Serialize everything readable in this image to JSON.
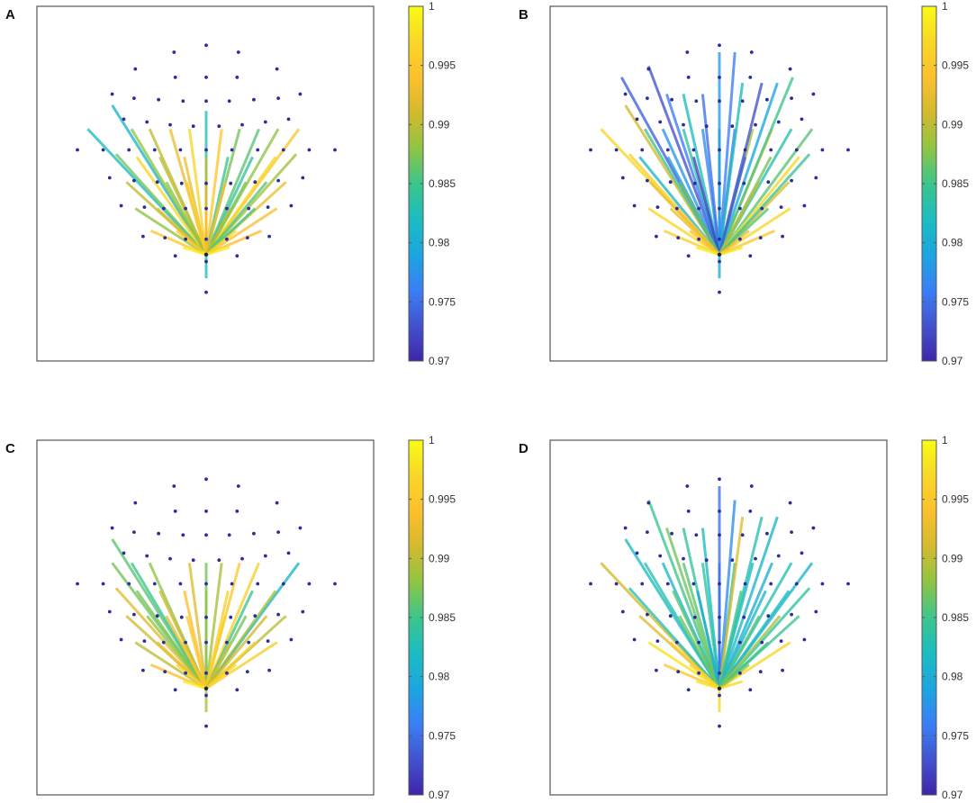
{
  "figure": {
    "colorbar": {
      "min": 0.97,
      "max": 1,
      "ticks": [
        "1",
        "0.995",
        "0.99",
        "0.985",
        "0.98",
        "0.975",
        "0.97"
      ],
      "colormap": [
        "#3e26a8",
        "#4352ce",
        "#3a7ff5",
        "#1ba6e0",
        "#1cbcc0",
        "#3cc58c",
        "#8fc542",
        "#d2ba2f",
        "#fcc02d",
        "#f8d727",
        "#f9fb15"
      ]
    },
    "electrode_color": "#2b2d9a"
  },
  "chart_data": [
    {
      "type": "network",
      "panel": "A",
      "hub": [
        0,
        -0.45
      ],
      "connections": [
        {
          "to": [
            -0.92,
            0.45
          ],
          "value": 0.982
        },
        {
          "to": [
            -0.73,
            0.62
          ],
          "value": 0.981
        },
        {
          "to": [
            -0.58,
            0.45
          ],
          "value": 0.988
        },
        {
          "to": [
            -0.44,
            0.45
          ],
          "value": 0.99
        },
        {
          "to": [
            -0.28,
            0.45
          ],
          "value": 0.993
        },
        {
          "to": [
            -0.13,
            0.45
          ],
          "value": 0.997
        },
        {
          "to": [
            0,
            0.58
          ],
          "value": 0.983
        },
        {
          "to": [
            0.12,
            0.45
          ],
          "value": 0.995
        },
        {
          "to": [
            0.26,
            0.45
          ],
          "value": 0.987
        },
        {
          "to": [
            0.41,
            0.45
          ],
          "value": 0.986
        },
        {
          "to": [
            0.56,
            0.45
          ],
          "value": 0.988
        },
        {
          "to": [
            0.72,
            0.45
          ],
          "value": 0.995
        },
        {
          "to": [
            -0.7,
            0.27
          ],
          "value": 0.987
        },
        {
          "to": [
            -0.54,
            0.25
          ],
          "value": 0.997
        },
        {
          "to": [
            -0.36,
            0.25
          ],
          "value": 0.99
        },
        {
          "to": [
            -0.17,
            0.25
          ],
          "value": 0.993
        },
        {
          "to": [
            0,
            0.25
          ],
          "value": 0.99
        },
        {
          "to": [
            0.17,
            0.25
          ],
          "value": 0.985
        },
        {
          "to": [
            0.36,
            0.25
          ],
          "value": 0.984
        },
        {
          "to": [
            0.54,
            0.25
          ],
          "value": 0.997
        },
        {
          "to": [
            0.7,
            0.27
          ],
          "value": 0.989
        },
        {
          "to": [
            -0.62,
            0.07
          ],
          "value": 0.99
        },
        {
          "to": [
            -0.31,
            0.07
          ],
          "value": 0.988
        },
        {
          "to": [
            -0.15,
            0.07
          ],
          "value": 0.996
        },
        {
          "to": [
            0,
            0.07
          ],
          "value": 0.992
        },
        {
          "to": [
            0.15,
            0.07
          ],
          "value": 0.994
        },
        {
          "to": [
            0.31,
            0.07
          ],
          "value": 0.987
        },
        {
          "to": [
            0.47,
            0.07
          ],
          "value": 0.986
        },
        {
          "to": [
            0.62,
            0.07
          ],
          "value": 0.993
        },
        {
          "to": [
            -0.55,
            -0.12
          ],
          "value": 0.988
        },
        {
          "to": [
            -0.38,
            -0.12
          ],
          "value": 0.992
        },
        {
          "to": [
            0,
            -0.12
          ],
          "value": 0.994
        },
        {
          "to": [
            0.19,
            -0.12
          ],
          "value": 0.99
        },
        {
          "to": [
            0.38,
            -0.12
          ],
          "value": 0.985
        },
        {
          "to": [
            0.55,
            -0.12
          ],
          "value": 0.994
        },
        {
          "to": [
            -0.43,
            -0.28
          ],
          "value": 0.995
        },
        {
          "to": [
            -0.23,
            -0.28
          ],
          "value": 0.996
        },
        {
          "to": [
            0.23,
            -0.28
          ],
          "value": 0.997
        },
        {
          "to": [
            0.43,
            -0.28
          ],
          "value": 0.994
        },
        {
          "to": [
            -0.18,
            -0.4
          ],
          "value": 0.999
        },
        {
          "to": [
            0.18,
            -0.4
          ],
          "value": 0.999
        },
        {
          "to": [
            0,
            -0.62
          ],
          "value": 0.982
        }
      ]
    },
    {
      "type": "network",
      "panel": "B",
      "hub": [
        0,
        -0.45
      ],
      "connections": [
        {
          "to": [
            -0.92,
            0.45
          ],
          "value": 0.997
        },
        {
          "to": [
            -0.73,
            0.62
          ],
          "value": 0.991
        },
        {
          "to": [
            -0.58,
            0.45
          ],
          "value": 0.985
        },
        {
          "to": [
            -0.44,
            0.45
          ],
          "value": 0.978
        },
        {
          "to": [
            -0.28,
            0.45
          ],
          "value": 0.984
        },
        {
          "to": [
            -0.13,
            0.45
          ],
          "value": 0.977
        },
        {
          "to": [
            0,
            0.45
          ],
          "value": 0.98
        },
        {
          "to": [
            0.12,
            0.45
          ],
          "value": 0.976
        },
        {
          "to": [
            0.26,
            0.45
          ],
          "value": 0.989
        },
        {
          "to": [
            0.41,
            0.45
          ],
          "value": 0.994
        },
        {
          "to": [
            0.56,
            0.45
          ],
          "value": 0.983
        },
        {
          "to": [
            0.72,
            0.45
          ],
          "value": 0.986
        },
        {
          "to": [
            -0.76,
            0.82
          ],
          "value": 0.974
        },
        {
          "to": [
            -0.55,
            0.9
          ],
          "value": 0.973
        },
        {
          "to": [
            -0.41,
            0.7
          ],
          "value": 0.976
        },
        {
          "to": [
            -0.28,
            0.7
          ],
          "value": 0.982
        },
        {
          "to": [
            -0.13,
            0.7
          ],
          "value": 0.975
        },
        {
          "to": [
            0,
            1.0
          ],
          "value": 0.978
        },
        {
          "to": [
            0.12,
            1.0
          ],
          "value": 0.976
        },
        {
          "to": [
            0.18,
            0.78
          ],
          "value": 0.982
        },
        {
          "to": [
            0.33,
            0.78
          ],
          "value": 0.973
        },
        {
          "to": [
            0.45,
            0.78
          ],
          "value": 0.979
        },
        {
          "to": [
            0.57,
            0.82
          ],
          "value": 0.985
        },
        {
          "to": [
            -0.62,
            0.25
          ],
          "value": 0.981
        },
        {
          "to": [
            -0.4,
            0.25
          ],
          "value": 0.978
        },
        {
          "to": [
            -0.2,
            0.25
          ],
          "value": 0.972
        },
        {
          "to": [
            0.2,
            0.25
          ],
          "value": 0.974
        },
        {
          "to": [
            0.4,
            0.25
          ],
          "value": 0.987
        },
        {
          "to": [
            0.62,
            0.25
          ],
          "value": 0.997
        },
        {
          "to": [
            -0.7,
            0.27
          ],
          "value": 0.996
        },
        {
          "to": [
            -0.54,
            0.07
          ],
          "value": 0.993
        },
        {
          "to": [
            -0.31,
            0.07
          ],
          "value": 0.987
        },
        {
          "to": [
            0.31,
            0.07
          ],
          "value": 0.99
        },
        {
          "to": [
            0.54,
            0.07
          ],
          "value": 0.992
        },
        {
          "to": [
            0.7,
            0.27
          ],
          "value": 0.985
        },
        {
          "to": [
            -0.55,
            -0.12
          ],
          "value": 0.997
        },
        {
          "to": [
            -0.38,
            -0.12
          ],
          "value": 0.993
        },
        {
          "to": [
            0.38,
            -0.12
          ],
          "value": 0.986
        },
        {
          "to": [
            0.55,
            -0.12
          ],
          "value": 0.997
        },
        {
          "to": [
            -0.43,
            -0.28
          ],
          "value": 0.996
        },
        {
          "to": [
            -0.23,
            -0.28
          ],
          "value": 0.994
        },
        {
          "to": [
            0.23,
            -0.28
          ],
          "value": 0.993
        },
        {
          "to": [
            0.43,
            -0.28
          ],
          "value": 0.995
        },
        {
          "to": [
            -0.18,
            -0.4
          ],
          "value": 0.999
        },
        {
          "to": [
            0.18,
            -0.4
          ],
          "value": 0.998
        },
        {
          "to": [
            0,
            -0.62
          ],
          "value": 0.98
        }
      ]
    },
    {
      "type": "network",
      "panel": "C",
      "hub": [
        0,
        -0.45
      ],
      "connections": [
        {
          "to": [
            -0.73,
            0.62
          ],
          "value": 0.986
        },
        {
          "to": [
            -0.73,
            0.45
          ],
          "value": 0.987
        },
        {
          "to": [
            -0.58,
            0.45
          ],
          "value": 0.985
        },
        {
          "to": [
            -0.44,
            0.45
          ],
          "value": 0.988
        },
        {
          "to": [
            -0.13,
            0.45
          ],
          "value": 0.992
        },
        {
          "to": [
            0,
            0.45
          ],
          "value": 0.987
        },
        {
          "to": [
            0.12,
            0.45
          ],
          "value": 0.989
        },
        {
          "to": [
            0.26,
            0.45
          ],
          "value": 0.995
        },
        {
          "to": [
            0.41,
            0.45
          ],
          "value": 0.996
        },
        {
          "to": [
            0.72,
            0.45
          ],
          "value": 0.981
        },
        {
          "to": [
            -0.7,
            0.27
          ],
          "value": 0.992
        },
        {
          "to": [
            -0.54,
            0.25
          ],
          "value": 0.987
        },
        {
          "to": [
            -0.36,
            0.25
          ],
          "value": 0.991
        },
        {
          "to": [
            -0.17,
            0.25
          ],
          "value": 0.994
        },
        {
          "to": [
            0,
            0.25
          ],
          "value": 0.988
        },
        {
          "to": [
            0.17,
            0.25
          ],
          "value": 0.996
        },
        {
          "to": [
            0.36,
            0.25
          ],
          "value": 0.985
        },
        {
          "to": [
            0.54,
            0.25
          ],
          "value": 0.989
        },
        {
          "to": [
            -0.62,
            0.07
          ],
          "value": 0.991
        },
        {
          "to": [
            -0.46,
            0.07
          ],
          "value": 0.988
        },
        {
          "to": [
            -0.31,
            0.07
          ],
          "value": 0.993
        },
        {
          "to": [
            -0.15,
            0.07
          ],
          "value": 0.995
        },
        {
          "to": [
            0.15,
            0.07
          ],
          "value": 0.996
        },
        {
          "to": [
            0.31,
            0.07
          ],
          "value": 0.987
        },
        {
          "to": [
            0.47,
            0.07
          ],
          "value": 0.991
        },
        {
          "to": [
            0.62,
            0.07
          ],
          "value": 0.99
        },
        {
          "to": [
            -0.55,
            -0.12
          ],
          "value": 0.99
        },
        {
          "to": [
            -0.38,
            -0.12
          ],
          "value": 0.993
        },
        {
          "to": [
            -0.19,
            -0.12
          ],
          "value": 0.995
        },
        {
          "to": [
            0.19,
            -0.12
          ],
          "value": 0.992
        },
        {
          "to": [
            0.38,
            -0.12
          ],
          "value": 0.996
        },
        {
          "to": [
            0.55,
            -0.12
          ],
          "value": 0.996
        },
        {
          "to": [
            -0.43,
            -0.28
          ],
          "value": 0.994
        },
        {
          "to": [
            -0.23,
            -0.28
          ],
          "value": 0.997
        },
        {
          "to": [
            0.23,
            -0.28
          ],
          "value": 0.997
        },
        {
          "to": [
            -0.18,
            -0.4
          ],
          "value": 0.999
        },
        {
          "to": [
            0,
            -0.62
          ],
          "value": 0.989
        }
      ]
    },
    {
      "type": "network",
      "panel": "D",
      "hub": [
        0,
        -0.45
      ],
      "connections": [
        {
          "to": [
            -0.92,
            0.45
          ],
          "value": 0.991
        },
        {
          "to": [
            -0.73,
            0.62
          ],
          "value": 0.982
        },
        {
          "to": [
            -0.58,
            0.45
          ],
          "value": 0.983
        },
        {
          "to": [
            -0.44,
            0.45
          ],
          "value": 0.981
        },
        {
          "to": [
            -0.28,
            0.45
          ],
          "value": 0.986
        },
        {
          "to": [
            -0.13,
            0.45
          ],
          "value": 0.984
        },
        {
          "to": [
            0,
            0.45
          ],
          "value": 0.976
        },
        {
          "to": [
            0.12,
            0.45
          ],
          "value": 0.983
        },
        {
          "to": [
            0.26,
            0.45
          ],
          "value": 0.982
        },
        {
          "to": [
            0.41,
            0.45
          ],
          "value": 0.98
        },
        {
          "to": [
            0.56,
            0.45
          ],
          "value": 0.983
        },
        {
          "to": [
            0.72,
            0.45
          ],
          "value": 0.981
        },
        {
          "to": [
            -0.55,
            0.9
          ],
          "value": 0.985
        },
        {
          "to": [
            -0.41,
            0.7
          ],
          "value": 0.987
        },
        {
          "to": [
            -0.28,
            0.7
          ],
          "value": 0.984
        },
        {
          "to": [
            -0.13,
            0.7
          ],
          "value": 0.982
        },
        {
          "to": [
            0,
            1.0
          ],
          "value": 0.975
        },
        {
          "to": [
            0.12,
            0.9
          ],
          "value": 0.977
        },
        {
          "to": [
            0.18,
            0.78
          ],
          "value": 0.992
        },
        {
          "to": [
            0.33,
            0.78
          ],
          "value": 0.983
        },
        {
          "to": [
            0.45,
            0.78
          ],
          "value": 0.981
        },
        {
          "to": [
            -0.7,
            0.27
          ],
          "value": 0.983
        },
        {
          "to": [
            -0.36,
            0.25
          ],
          "value": 0.986
        },
        {
          "to": [
            -0.17,
            0.25
          ],
          "value": 0.98
        },
        {
          "to": [
            0.17,
            0.25
          ],
          "value": 0.985
        },
        {
          "to": [
            0.36,
            0.25
          ],
          "value": 0.981
        },
        {
          "to": [
            0.54,
            0.25
          ],
          "value": 0.982
        },
        {
          "to": [
            0.7,
            0.27
          ],
          "value": 0.984
        },
        {
          "to": [
            -0.62,
            0.07
          ],
          "value": 0.992
        },
        {
          "to": [
            -0.31,
            0.07
          ],
          "value": 0.987
        },
        {
          "to": [
            0.31,
            0.07
          ],
          "value": 0.986
        },
        {
          "to": [
            0.47,
            0.07
          ],
          "value": 0.989
        },
        {
          "to": [
            0.62,
            0.07
          ],
          "value": 0.985
        },
        {
          "to": [
            -0.55,
            -0.12
          ],
          "value": 0.998
        },
        {
          "to": [
            -0.38,
            -0.12
          ],
          "value": 0.996
        },
        {
          "to": [
            0.38,
            -0.12
          ],
          "value": 0.985
        },
        {
          "to": [
            0.55,
            -0.12
          ],
          "value": 0.997
        },
        {
          "to": [
            -0.43,
            -0.28
          ],
          "value": 0.995
        },
        {
          "to": [
            -0.23,
            -0.28
          ],
          "value": 0.997
        },
        {
          "to": [
            0.23,
            -0.28
          ],
          "value": 0.988
        },
        {
          "to": [
            -0.18,
            -0.4
          ],
          "value": 0.998
        },
        {
          "to": [
            0.18,
            -0.4
          ],
          "value": 0.997
        },
        {
          "to": [
            0,
            -0.62
          ],
          "value": 0.997
        }
      ]
    }
  ]
}
